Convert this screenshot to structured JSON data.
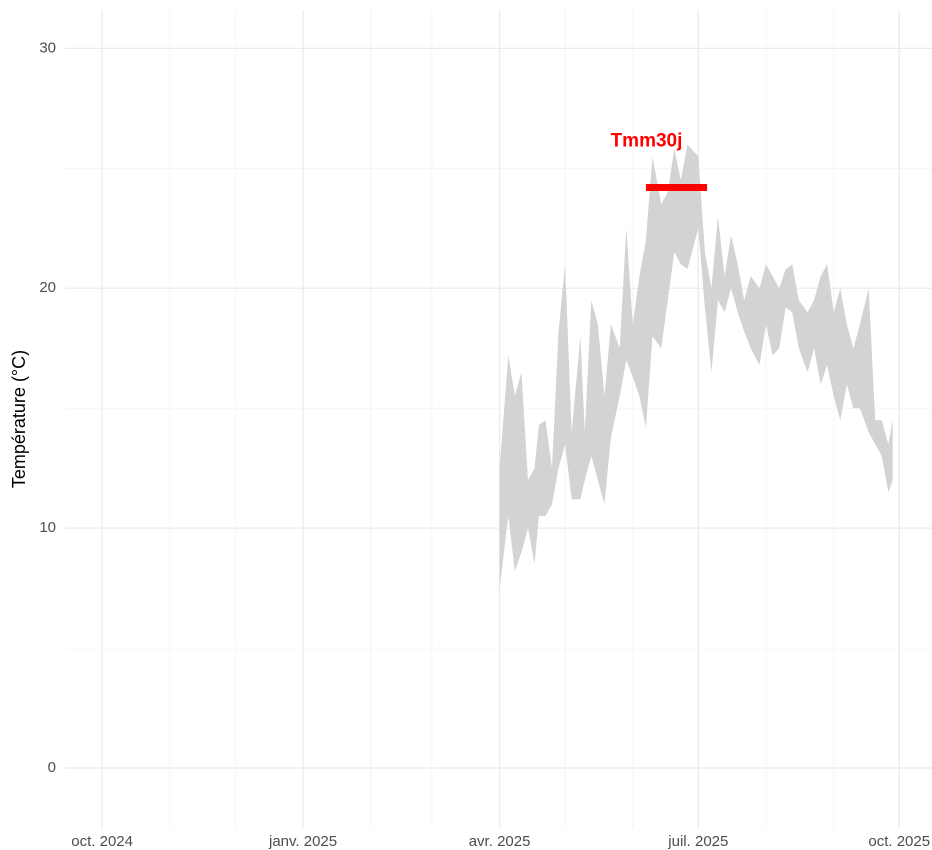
{
  "chart_data": {
    "type": "ribbon",
    "ylabel": "Température (°C)",
    "xlim": [
      "2024-09-14",
      "2025-10-16"
    ],
    "xticks": [
      {
        "value": "2024-10-01",
        "label": "oct. 2024"
      },
      {
        "value": "2025-01-01",
        "label": "janv. 2025"
      },
      {
        "value": "2025-04-01",
        "label": "avr. 2025"
      },
      {
        "value": "2025-07-01",
        "label": "juil. 2025"
      },
      {
        "value": "2025-10-01",
        "label": "oct. 2025"
      }
    ],
    "xminor": [
      "2024-11-01",
      "2024-12-01",
      "2025-02-01",
      "2025-03-01",
      "2025-05-01",
      "2025-06-01",
      "2025-08-01",
      "2025-09-01"
    ],
    "ylim": [
      -2.5,
      31.6
    ],
    "yticks": [
      0,
      10,
      20,
      30
    ],
    "yminor": [
      5,
      15,
      25
    ],
    "grid": true,
    "ribbon": {
      "color": "#d3d3d3",
      "x": [
        "2025-04-01",
        "2025-04-05",
        "2025-04-08",
        "2025-04-11",
        "2025-04-14",
        "2025-04-17",
        "2025-04-19",
        "2025-04-22",
        "2025-04-25",
        "2025-04-28",
        "2025-05-01",
        "2025-05-04",
        "2025-05-08",
        "2025-05-10",
        "2025-05-13",
        "2025-05-16",
        "2025-05-19",
        "2025-05-22",
        "2025-05-26",
        "2025-05-29",
        "2025-06-01",
        "2025-06-04",
        "2025-06-07",
        "2025-06-10",
        "2025-06-14",
        "2025-06-17",
        "2025-06-20",
        "2025-06-23",
        "2025-06-26",
        "2025-07-01",
        "2025-07-04",
        "2025-07-07",
        "2025-07-10",
        "2025-07-13",
        "2025-07-16",
        "2025-07-19",
        "2025-07-22",
        "2025-07-25",
        "2025-07-29",
        "2025-08-01",
        "2025-08-04",
        "2025-08-07",
        "2025-08-10",
        "2025-08-13",
        "2025-08-16",
        "2025-08-20",
        "2025-08-23",
        "2025-08-26",
        "2025-08-29",
        "2025-09-01",
        "2025-09-04",
        "2025-09-07",
        "2025-09-10",
        "2025-09-13",
        "2025-09-17",
        "2025-09-20",
        "2025-09-23",
        "2025-09-26",
        "2025-09-28"
      ],
      "ymax": [
        12.5,
        17.2,
        15.5,
        16.5,
        12,
        12.5,
        14.3,
        14.5,
        12.5,
        18.2,
        21,
        14,
        18,
        14,
        19.5,
        18.5,
        15.5,
        18.5,
        17.5,
        22.5,
        18.5,
        20.5,
        22,
        25.5,
        23.5,
        24,
        25.8,
        24.5,
        26,
        25.5,
        21.5,
        20,
        23,
        20.5,
        22.2,
        21,
        19.5,
        20.5,
        20,
        21,
        20.5,
        20,
        20.8,
        21,
        19.5,
        19,
        19.5,
        20.5,
        21,
        19,
        20,
        18.5,
        17.5,
        18.5,
        20,
        14.5,
        14.5,
        13.5,
        14.5
      ],
      "ymin": [
        7.5,
        10.5,
        8.2,
        9,
        10,
        8.5,
        10.5,
        10.5,
        11,
        12.5,
        13.5,
        11.2,
        11.2,
        12,
        13,
        12,
        11,
        13.8,
        15.5,
        17,
        16.3,
        15.5,
        14.2,
        18,
        17.5,
        19.5,
        21.5,
        21,
        20.8,
        22.5,
        19.2,
        16.5,
        19.5,
        19,
        20,
        19,
        18.2,
        17.5,
        16.8,
        18.5,
        17.2,
        17.5,
        19.2,
        19,
        17.5,
        16.5,
        17.5,
        16,
        16.8,
        15.5,
        14.5,
        16,
        15,
        15,
        14,
        13.5,
        13,
        11.5,
        12
      ]
    },
    "segment": {
      "label": "Tmm30j",
      "color": "#ff0000",
      "x": [
        "2025-06-07",
        "2025-07-05"
      ],
      "value": 24.2
    }
  }
}
